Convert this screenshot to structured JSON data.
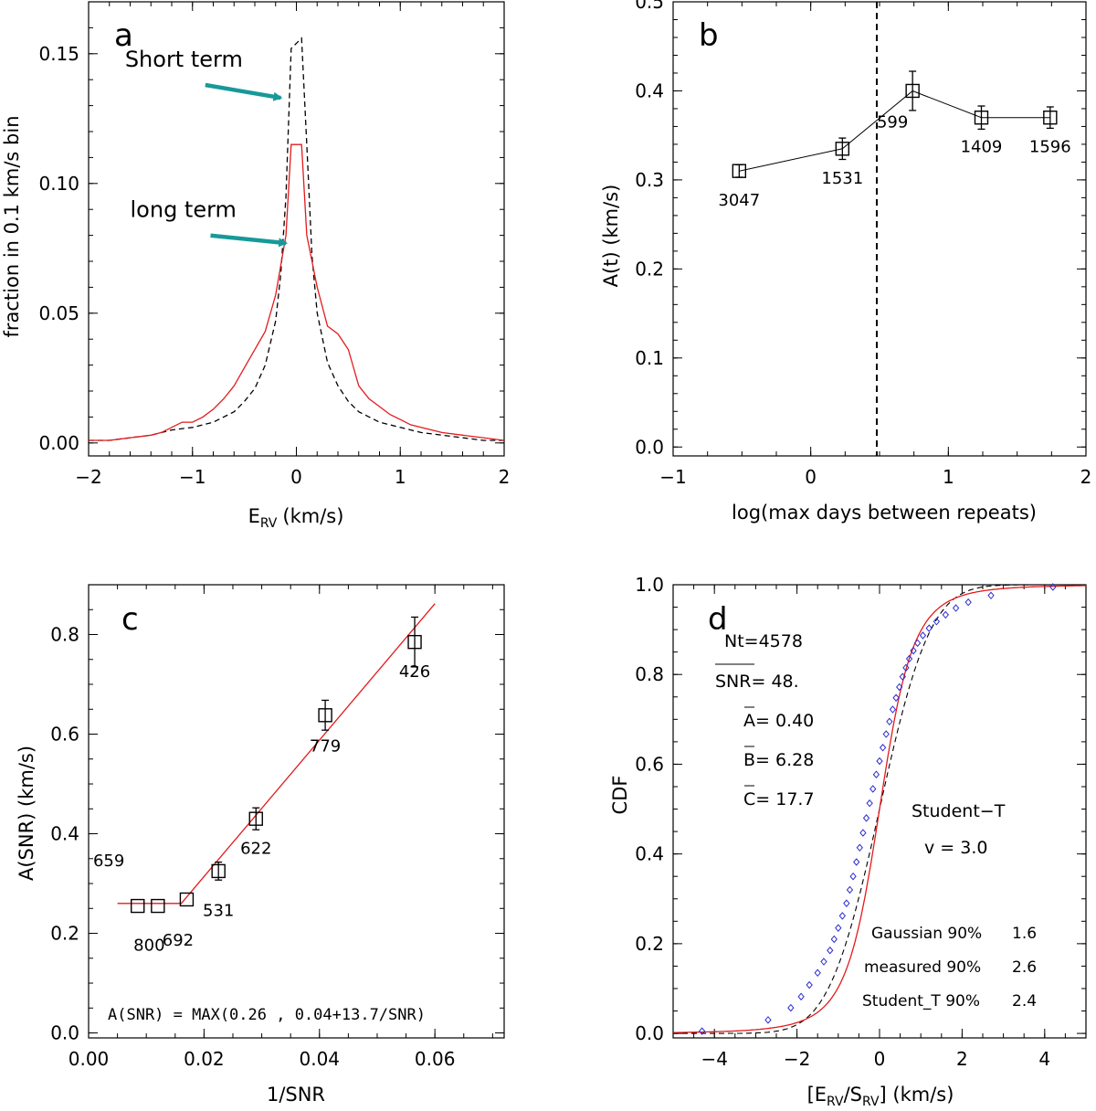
{
  "figure_labels": {
    "a": "a",
    "b": "b",
    "c": "c",
    "d": "d"
  },
  "colors": {
    "red": "#e31a1c",
    "teal": "#179999",
    "blue": "#2b2bcf",
    "black": "#000000"
  },
  "chart_data": [
    {
      "panel": "a",
      "type": "line",
      "xlabel": "E",
      "xlabel_sub": "RV",
      "xlabel_unit": "(km/s)",
      "ylabel": "fraction in 0.1 km/s bin",
      "xlim": [
        -2,
        2
      ],
      "ylim": [
        -0.005,
        0.17
      ],
      "xticks": [
        -2,
        -1,
        0,
        1,
        2
      ],
      "yticks": [
        0.0,
        0.05,
        0.1,
        0.15
      ],
      "ytick_labels": [
        "0.00",
        "0.05",
        "0.10",
        "0.15"
      ],
      "xtick_labels": [
        "−2",
        "−1",
        "0",
        "1",
        "2"
      ],
      "annotations": [
        {
          "text": "Short term",
          "color": "#000000",
          "arrow_to": [
            -0.15,
            0.133
          ],
          "text_at": [
            -1.65,
            0.145
          ]
        },
        {
          "text": "long term",
          "color": "#e31a1c",
          "arrow_to": [
            -0.1,
            0.077
          ],
          "text_at": [
            -1.6,
            0.087
          ]
        }
      ],
      "series": [
        {
          "name": "Short term",
          "style": "dashed",
          "color": "#000000",
          "x": [
            -2.0,
            -1.8,
            -1.6,
            -1.4,
            -1.2,
            -1.0,
            -0.8,
            -0.6,
            -0.5,
            -0.4,
            -0.3,
            -0.2,
            -0.15,
            -0.1,
            -0.05,
            0.0,
            0.05,
            0.1,
            0.15,
            0.2,
            0.3,
            0.4,
            0.5,
            0.6,
            0.8,
            1.0,
            1.2,
            1.4,
            1.6,
            1.8,
            2.0
          ],
          "y": [
            0.001,
            0.001,
            0.002,
            0.003,
            0.005,
            0.006,
            0.008,
            0.012,
            0.016,
            0.021,
            0.03,
            0.047,
            0.065,
            0.095,
            0.152,
            0.154,
            0.156,
            0.115,
            0.072,
            0.05,
            0.031,
            0.022,
            0.016,
            0.012,
            0.008,
            0.006,
            0.004,
            0.003,
            0.002,
            0.001,
            0.001
          ]
        },
        {
          "name": "long term",
          "style": "solid",
          "color": "#e31a1c",
          "x": [
            -2.0,
            -1.8,
            -1.6,
            -1.4,
            -1.3,
            -1.2,
            -1.1,
            -1.0,
            -0.9,
            -0.8,
            -0.7,
            -0.6,
            -0.5,
            -0.4,
            -0.3,
            -0.2,
            -0.1,
            -0.05,
            0.0,
            0.05,
            0.1,
            0.2,
            0.3,
            0.4,
            0.5,
            0.6,
            0.7,
            0.8,
            0.9,
            1.0,
            1.1,
            1.2,
            1.4,
            1.6,
            1.8,
            2.0
          ],
          "y": [
            0.001,
            0.001,
            0.002,
            0.003,
            0.004,
            0.006,
            0.008,
            0.008,
            0.01,
            0.013,
            0.017,
            0.022,
            0.029,
            0.036,
            0.043,
            0.057,
            0.08,
            0.115,
            0.115,
            0.115,
            0.08,
            0.06,
            0.045,
            0.042,
            0.036,
            0.022,
            0.017,
            0.014,
            0.011,
            0.009,
            0.007,
            0.006,
            0.004,
            0.003,
            0.002,
            0.001
          ]
        }
      ]
    },
    {
      "panel": "b",
      "type": "line",
      "xlabel": "log(max days between repeats)",
      "ylabel": "A(t)  (km/s)",
      "xlim": [
        -1,
        2
      ],
      "ylim": [
        -0.01,
        0.5
      ],
      "xticks": [
        -1,
        0,
        1,
        2
      ],
      "xtick_labels": [
        "−1",
        "0",
        "1",
        "2"
      ],
      "yticks": [
        0.0,
        0.1,
        0.2,
        0.3,
        0.4,
        0.5
      ],
      "ytick_labels": [
        "0.0",
        "0.1",
        "0.2",
        "0.3",
        "0.4",
        "0.5"
      ],
      "vline_x": 0.48,
      "points": [
        {
          "x": -0.52,
          "y": 0.31,
          "err": 0.007,
          "label": "3047",
          "label_pos": "below"
        },
        {
          "x": 0.23,
          "y": 0.335,
          "err": 0.012,
          "label": "1531",
          "label_pos": "below"
        },
        {
          "x": 0.74,
          "y": 0.4,
          "err": 0.022,
          "label": "599",
          "label_pos": "below-left"
        },
        {
          "x": 1.24,
          "y": 0.37,
          "err": 0.013,
          "label": "1409",
          "label_pos": "below"
        },
        {
          "x": 1.74,
          "y": 0.37,
          "err": 0.012,
          "label": "1596",
          "label_pos": "below"
        }
      ]
    },
    {
      "panel": "c",
      "type": "scatter",
      "xlabel": "1/SNR",
      "ylabel": "A(SNR)  (km/s)",
      "xlim": [
        0.0,
        0.072
      ],
      "ylim": [
        -0.01,
        0.9
      ],
      "xticks": [
        0.0,
        0.02,
        0.04,
        0.06
      ],
      "xtick_labels": [
        "0.00",
        "0.02",
        "0.04",
        "0.06"
      ],
      "yticks": [
        0.0,
        0.2,
        0.4,
        0.6,
        0.8
      ],
      "ytick_labels": [
        "0.0",
        "0.2",
        "0.4",
        "0.6",
        "0.8"
      ],
      "formula": "A(SNR) = MAX(0.26 , 0.04+13.7/SNR)",
      "fit": {
        "floor": 0.26,
        "intercept": 0.04,
        "slope": 13.7,
        "xrange": [
          0.005,
          0.06
        ]
      },
      "points": [
        {
          "x": 0.0085,
          "y": 0.255,
          "err": 0.0,
          "label": "659",
          "lx": 0.0035,
          "ly": 0.335
        },
        {
          "x": 0.012,
          "y": 0.255,
          "err": 0.0,
          "label": "800",
          "lx": 0.0105,
          "ly": 0.165
        },
        {
          "x": 0.017,
          "y": 0.268,
          "err": 0.0,
          "label": "692",
          "lx": 0.0155,
          "ly": 0.175
        },
        {
          "x": 0.0225,
          "y": 0.325,
          "err": 0.018,
          "label": "531",
          "lx": 0.0225,
          "ly": 0.235
        },
        {
          "x": 0.029,
          "y": 0.43,
          "err": 0.022,
          "label": "622",
          "lx": 0.029,
          "ly": 0.36
        },
        {
          "x": 0.041,
          "y": 0.638,
          "err": 0.03,
          "label": "779",
          "lx": 0.041,
          "ly": 0.565
        },
        {
          "x": 0.0565,
          "y": 0.785,
          "err": 0.05,
          "label": "426",
          "lx": 0.0565,
          "ly": 0.715
        }
      ]
    },
    {
      "panel": "d",
      "type": "line",
      "xlabel": "[E",
      "xlabel_sub1": "RV",
      "xlabel_mid": "/S",
      "xlabel_sub2": "RV",
      "xlabel_end": "]  (km/s)",
      "ylabel": "CDF",
      "xlim": [
        -5,
        5
      ],
      "ylim": [
        -0.01,
        1.0
      ],
      "xticks": [
        -4,
        -2,
        0,
        2,
        4
      ],
      "xtick_labels": [
        "−4",
        "−2",
        "0",
        "2",
        "4"
      ],
      "yticks": [
        0.0,
        0.2,
        0.4,
        0.6,
        0.8,
        1.0
      ],
      "ytick_labels": [
        "0.0",
        "0.2",
        "0.4",
        "0.6",
        "0.8",
        "1.0"
      ],
      "stats": {
        "nt": "Nt=4578",
        "snr_name": "SNR",
        "snr_value": "= 48.",
        "a_name": "A",
        "a_value": "= 0.40",
        "b_name": "B",
        "b_value": "= 6.28",
        "c_name": "C",
        "c_value": "= 17.7",
        "model": "Student−T",
        "nu": "v  =   3.0",
        "rows": [
          {
            "label": "Gaussian 90%",
            "value": "1.6"
          },
          {
            "label": "measured 90%",
            "value": "2.6"
          },
          {
            "label": "Student_T 90%",
            "value": "2.4"
          }
        ]
      },
      "student_t_nu": 3.0,
      "student_t_scale": 0.62,
      "gaussian_sigma": 0.97,
      "measured_points": {
        "x": [
          -4.3,
          -2.7,
          -2.15,
          -1.9,
          -1.7,
          -1.5,
          -1.35,
          -1.2,
          -1.1,
          -1.0,
          -0.9,
          -0.8,
          -0.72,
          -0.64,
          -0.56,
          -0.48,
          -0.4,
          -0.32,
          -0.24,
          -0.16,
          -0.08,
          0.0,
          0.08,
          0.16,
          0.24,
          0.32,
          0.4,
          0.48,
          0.56,
          0.64,
          0.72,
          0.82,
          0.92,
          1.05,
          1.2,
          1.38,
          1.6,
          1.85,
          2.15,
          2.7,
          4.2
        ],
        "y": [
          0.005,
          0.03,
          0.057,
          0.082,
          0.108,
          0.135,
          0.16,
          0.185,
          0.21,
          0.235,
          0.262,
          0.29,
          0.32,
          0.35,
          0.382,
          0.414,
          0.447,
          0.48,
          0.513,
          0.545,
          0.577,
          0.607,
          0.637,
          0.667,
          0.695,
          0.722,
          0.748,
          0.772,
          0.795,
          0.815,
          0.835,
          0.853,
          0.87,
          0.887,
          0.903,
          0.918,
          0.933,
          0.948,
          0.961,
          0.976,
          0.995
        ]
      }
    }
  ]
}
